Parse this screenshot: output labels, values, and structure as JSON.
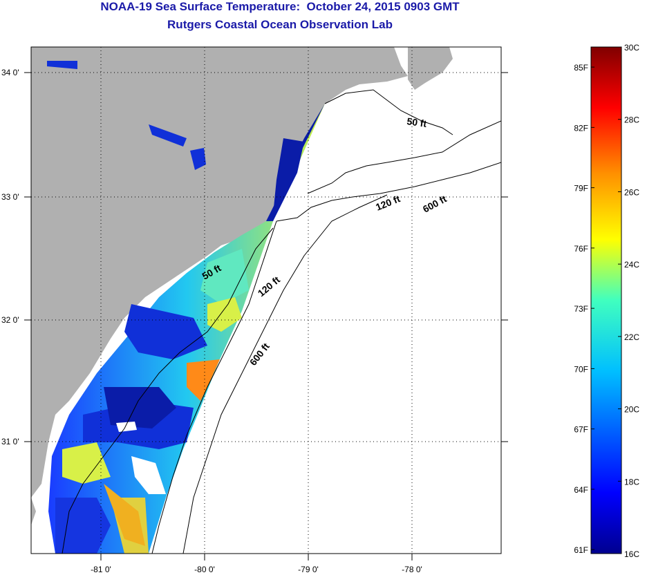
{
  "header": {
    "title": "NOAA-19 Sea Surface Temperature:  October 24, 2015 0903 GMT",
    "subtitle": "Rutgers Coastal Ocean Observation Lab"
  },
  "map": {
    "lon_ticks": [
      "-81 0'",
      "-80 0'",
      "-79 0'",
      "-78 0'"
    ],
    "lat_ticks": [
      "34 0'",
      "33 0'",
      "32 0'",
      "31 0'"
    ],
    "contours": [
      {
        "label": "50 ft",
        "position": "north"
      },
      {
        "label": "120 ft",
        "position": "north"
      },
      {
        "label": "600 ft",
        "position": "north"
      },
      {
        "label": "50 ft",
        "position": "central"
      },
      {
        "label": "120 ft",
        "position": "central"
      },
      {
        "label": "600 ft",
        "position": "south"
      }
    ],
    "colors": {
      "land": "#b0b0b0",
      "ocean_no_data": "#ffffff",
      "title": "#1a1aa8"
    }
  },
  "colorbar": {
    "fahrenheit": [
      "85F",
      "82F",
      "79F",
      "76F",
      "73F",
      "70F",
      "67F",
      "64F",
      "61F"
    ],
    "celsius": [
      "30C",
      "28C",
      "26C",
      "24C",
      "22C",
      "20C",
      "18C",
      "16C"
    ],
    "range_c": [
      16,
      30
    ]
  }
}
